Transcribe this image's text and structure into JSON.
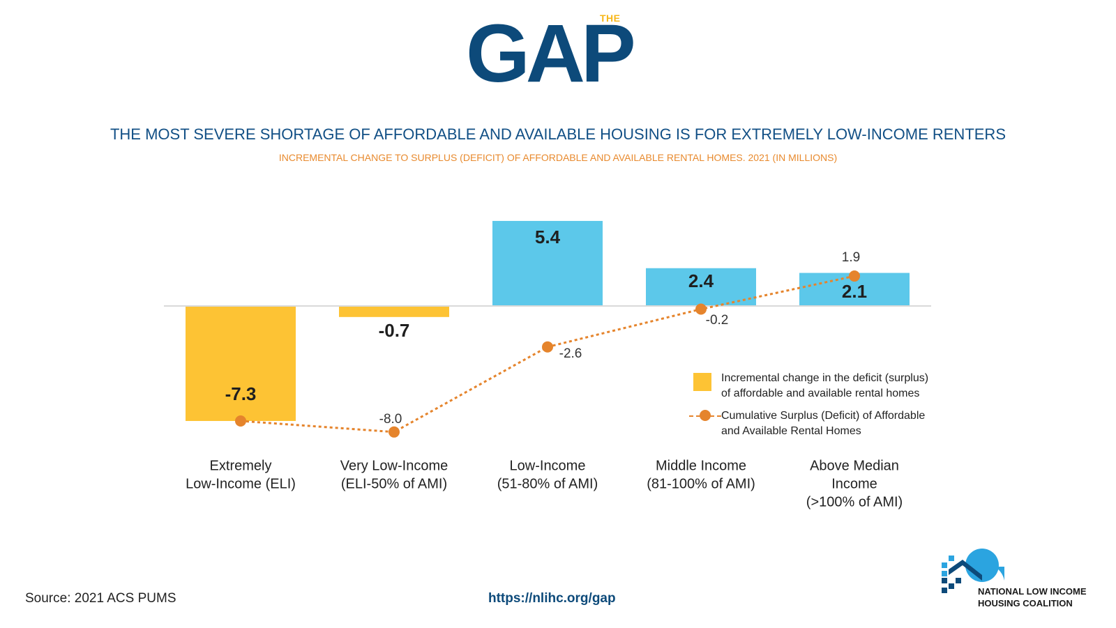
{
  "logo": {
    "the": "THE",
    "gap": "GAP"
  },
  "header": {
    "title": "THE MOST SEVERE SHORTAGE OF AFFORDABLE AND AVAILABLE HOUSING IS FOR EXTREMELY LOW-INCOME RENTERS",
    "subtitle": "INCREMENTAL CHANGE TO SURPLUS (DEFICIT) OF AFFORDABLE AND AVAILABLE RENTAL HOMES. 2021 (IN MILLIONS)"
  },
  "chart_data": {
    "type": "bar",
    "categories": [
      [
        "Extremely",
        "Low-Income (ELI)"
      ],
      [
        "Very Low-Income",
        "(ELI-50% of AMI)"
      ],
      [
        "Low-Income",
        "(51-80% of AMI)"
      ],
      [
        "Middle Income",
        "(81-100% of AMI)"
      ],
      [
        "Above Median",
        "Income",
        "(>100% of AMI)"
      ]
    ],
    "series": [
      {
        "name": "Incremental change in the deficit (surplus) of affordable and available rental homes",
        "type": "bar",
        "values": [
          -7.3,
          -0.7,
          5.4,
          2.4,
          2.1
        ],
        "labels": [
          "-7.3",
          "-0.7",
          "5.4",
          "2.4",
          "2.1"
        ],
        "colors": [
          "#fdc334",
          "#fdc334",
          "#5cc8ea",
          "#5cc8ea",
          "#5cc8ea"
        ]
      },
      {
        "name": "Cumulative Surplus (Deficit) of Affordable and Available Rental Homes",
        "type": "line",
        "values": [
          -7.3,
          -8.0,
          -2.6,
          -0.2,
          1.9
        ],
        "labels": [
          "",
          "-8.0",
          "-2.6",
          "-0.2",
          "1.9"
        ],
        "color": "#e5842c"
      }
    ],
    "ylim": [
      -8.4,
      5.6
    ],
    "grid": false,
    "legend_position": "bottom-right"
  },
  "legend": {
    "bar_label": "Incremental change in the deficit (surplus)\nof affordable and available rental homes",
    "line_label": "Cumulative Surplus (Deficit) of Affordable\nand Available Rental Homes"
  },
  "footer": {
    "source": "Source: 2021 ACS PUMS",
    "url": "https://nlihc.org/gap",
    "org_name": "NATIONAL LOW INCOME\nHOUSING COALITION"
  },
  "colors": {
    "navy": "#0d4a7a",
    "gold": "#f7b718",
    "orange": "#e5842c",
    "cyan": "#5cc8ea",
    "yellow": "#fdc334"
  }
}
